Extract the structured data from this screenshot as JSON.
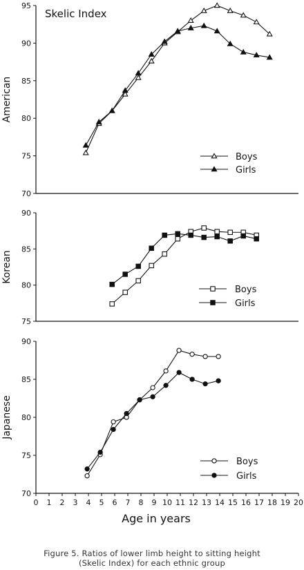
{
  "figure": {
    "caption_line1": "Figure  5.  Ratios of lower limb height to sitting height",
    "caption_line2": "(Skelic Index) for each ethnic group"
  },
  "chart_data": [
    {
      "type": "line",
      "title": "Skelic Index",
      "ylabel": "American",
      "ylim": [
        70,
        95
      ],
      "yticks": [
        70,
        75,
        80,
        85,
        90,
        95
      ],
      "xlim": [
        0,
        20
      ],
      "series": [
        {
          "name": "Boys",
          "marker": "open-triangle",
          "x": [
            3.8,
            4.8,
            5.8,
            6.8,
            7.8,
            8.8,
            9.8,
            10.8,
            11.8,
            12.8,
            13.8,
            14.8,
            15.8,
            16.8,
            17.8
          ],
          "y": [
            75.4,
            79.3,
            81.0,
            83.2,
            85.4,
            87.6,
            90.0,
            91.5,
            93.0,
            94.3,
            95.0,
            94.3,
            93.7,
            92.8,
            91.2
          ]
        },
        {
          "name": "Girls",
          "marker": "filled-triangle",
          "x": [
            3.8,
            4.8,
            5.8,
            6.8,
            7.8,
            8.8,
            9.8,
            10.8,
            11.8,
            12.8,
            13.8,
            14.8,
            15.8,
            16.8,
            17.8
          ],
          "y": [
            76.4,
            79.5,
            81.0,
            83.7,
            86.0,
            88.5,
            90.2,
            91.6,
            92.0,
            92.3,
            91.6,
            89.9,
            88.8,
            88.4,
            88.1
          ]
        }
      ]
    },
    {
      "type": "line",
      "ylabel": "Korean",
      "ylim": [
        75,
        90
      ],
      "yticks": [
        75,
        80,
        85,
        90
      ],
      "xlim": [
        0,
        20
      ],
      "series": [
        {
          "name": "Boys",
          "marker": "open-square",
          "x": [
            5.8,
            6.8,
            7.8,
            8.8,
            9.8,
            10.8,
            11.8,
            12.8,
            13.8,
            14.8,
            15.8,
            16.8
          ],
          "y": [
            77.4,
            79.0,
            80.6,
            82.7,
            84.3,
            86.4,
            87.4,
            87.9,
            87.4,
            87.3,
            87.3,
            86.9
          ]
        },
        {
          "name": "Girls",
          "marker": "filled-square",
          "x": [
            5.8,
            6.8,
            7.8,
            8.8,
            9.8,
            10.8,
            11.8,
            12.8,
            13.8,
            14.8,
            15.8,
            16.8
          ],
          "y": [
            80.1,
            81.5,
            82.6,
            85.1,
            86.9,
            87.1,
            86.9,
            86.6,
            86.7,
            86.1,
            86.8,
            86.4
          ]
        }
      ]
    },
    {
      "type": "line",
      "ylabel": "Japanese",
      "ylim": [
        70,
        90
      ],
      "yticks": [
        70,
        75,
        80,
        85,
        90
      ],
      "xlim": [
        0,
        20
      ],
      "xticks": [
        0,
        1,
        2,
        3,
        4,
        5,
        6,
        7,
        8,
        9,
        10,
        11,
        12,
        13,
        14,
        15,
        16,
        17,
        18,
        19,
        20
      ],
      "xlabel": "Age in years",
      "series": [
        {
          "name": "Boys",
          "marker": "open-circle",
          "x": [
            3.9,
            4.9,
            5.9,
            6.9,
            7.9,
            8.9,
            9.9,
            10.9,
            11.9,
            12.9,
            13.9
          ],
          "y": [
            72.3,
            75.1,
            79.4,
            80.0,
            82.3,
            83.9,
            86.1,
            88.8,
            88.3,
            88.0,
            88.0
          ]
        },
        {
          "name": "Girls",
          "marker": "filled-circle",
          "x": [
            3.9,
            4.9,
            5.9,
            6.9,
            7.9,
            8.9,
            9.9,
            10.9,
            11.9,
            12.9,
            13.9
          ],
          "y": [
            73.2,
            75.4,
            78.4,
            80.5,
            82.3,
            82.7,
            84.2,
            85.9,
            85.0,
            84.4,
            84.8
          ]
        }
      ]
    }
  ]
}
